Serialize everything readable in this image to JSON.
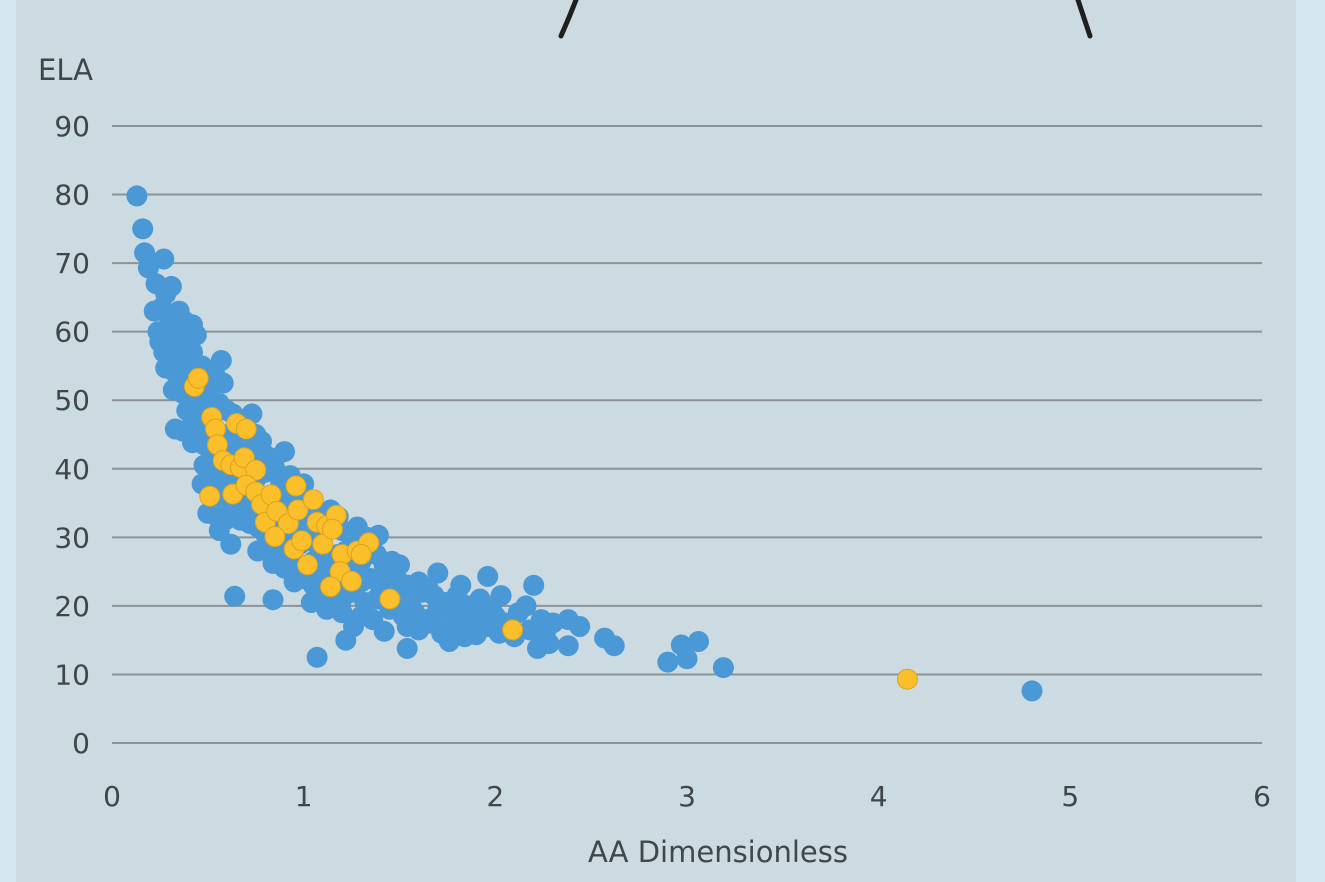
{
  "chart_data": {
    "type": "scatter",
    "title": "",
    "xlabel": "AA Dimensionless",
    "ylabel": "ELA",
    "xlim": [
      0,
      6
    ],
    "ylim": [
      0,
      90
    ],
    "x_ticks": [
      "0",
      "1",
      "2",
      "3",
      "4",
      "5",
      "6"
    ],
    "y_ticks": [
      "0",
      "10",
      "20",
      "30",
      "40",
      "50",
      "60",
      "70",
      "80",
      "90"
    ],
    "grid": true,
    "legend": "none",
    "colors": {
      "series1": "#4a98d6",
      "series2": "#fbbf2c"
    },
    "series": [
      {
        "color": "#4a98d6",
        "points": [
          [
            0.13,
            79.8
          ],
          [
            0.16,
            75
          ],
          [
            0.17,
            71.5
          ],
          [
            0.19,
            69.3
          ],
          [
            0.27,
            70.6
          ],
          [
            0.23,
            67
          ],
          [
            0.31,
            66.6
          ],
          [
            0.28,
            65.5
          ],
          [
            0.22,
            63
          ],
          [
            0.26,
            63.5
          ],
          [
            0.3,
            62
          ],
          [
            0.35,
            63
          ],
          [
            0.38,
            61.5
          ],
          [
            0.42,
            61
          ],
          [
            0.24,
            60
          ],
          [
            0.28,
            59.5
          ],
          [
            0.32,
            60.5
          ],
          [
            0.25,
            58.5
          ],
          [
            0.3,
            58
          ],
          [
            0.36,
            59
          ],
          [
            0.4,
            58
          ],
          [
            0.44,
            59.5
          ],
          [
            0.27,
            57
          ],
          [
            0.33,
            56.5
          ],
          [
            0.38,
            56
          ],
          [
            0.42,
            57
          ],
          [
            0.47,
            55
          ],
          [
            0.57,
            55.8
          ],
          [
            0.28,
            54.7
          ],
          [
            0.33,
            54
          ],
          [
            0.37,
            53.5
          ],
          [
            0.41,
            54
          ],
          [
            0.46,
            53.5
          ],
          [
            0.5,
            52.5
          ],
          [
            0.54,
            53.5
          ],
          [
            0.58,
            52.5
          ],
          [
            0.32,
            51.5
          ],
          [
            0.37,
            51
          ],
          [
            0.42,
            50
          ],
          [
            0.48,
            51.5
          ],
          [
            0.52,
            50
          ],
          [
            0.56,
            49.5
          ],
          [
            0.6,
            48.5
          ],
          [
            0.39,
            48.5
          ],
          [
            0.45,
            48
          ],
          [
            0.5,
            47
          ],
          [
            0.55,
            48.5
          ],
          [
            0.63,
            48
          ],
          [
            0.69,
            46.5
          ],
          [
            0.73,
            48
          ],
          [
            0.42,
            46.5
          ],
          [
            0.47,
            45.5
          ],
          [
            0.53,
            44.5
          ],
          [
            0.58,
            45
          ],
          [
            0.62,
            44
          ],
          [
            0.66,
            45
          ],
          [
            0.71,
            44.5
          ],
          [
            0.75,
            45
          ],
          [
            0.78,
            44
          ],
          [
            0.33,
            45.8
          ],
          [
            0.37,
            45.5
          ],
          [
            0.42,
            43.8
          ],
          [
            0.48,
            43.5
          ],
          [
            0.52,
            42.5
          ],
          [
            0.56,
            42
          ],
          [
            0.6,
            41.5
          ],
          [
            0.64,
            42.5
          ],
          [
            0.68,
            41.5
          ],
          [
            0.72,
            42
          ],
          [
            0.76,
            43
          ],
          [
            0.8,
            42
          ],
          [
            0.85,
            41.5
          ],
          [
            0.9,
            42.5
          ],
          [
            0.48,
            40.5
          ],
          [
            0.52,
            39.5
          ],
          [
            0.56,
            39
          ],
          [
            0.6,
            38.5
          ],
          [
            0.64,
            38
          ],
          [
            0.7,
            39
          ],
          [
            0.75,
            38.5
          ],
          [
            0.8,
            39.5
          ],
          [
            0.85,
            40
          ],
          [
            0.88,
            38
          ],
          [
            0.93,
            39
          ],
          [
            0.47,
            37.8
          ],
          [
            0.52,
            36.5
          ],
          [
            0.56,
            36
          ],
          [
            0.61,
            35.5
          ],
          [
            0.65,
            35
          ],
          [
            0.7,
            34.5
          ],
          [
            0.74,
            35.5
          ],
          [
            0.78,
            34
          ],
          [
            0.83,
            35
          ],
          [
            0.86,
            36.5
          ],
          [
            0.9,
            35.5
          ],
          [
            0.95,
            36
          ],
          [
            1.0,
            37.8
          ],
          [
            0.5,
            33.5
          ],
          [
            0.55,
            33
          ],
          [
            0.59,
            32.5
          ],
          [
            0.63,
            33.5
          ],
          [
            0.67,
            32.5
          ],
          [
            0.72,
            32
          ],
          [
            0.76,
            31.5
          ],
          [
            0.8,
            30.5
          ],
          [
            0.84,
            32.5
          ],
          [
            0.88,
            31
          ],
          [
            0.93,
            30.5
          ],
          [
            0.97,
            31.5
          ],
          [
            1.02,
            33
          ],
          [
            1.06,
            34
          ],
          [
            1.1,
            33
          ],
          [
            1.14,
            34
          ],
          [
            1.18,
            33
          ],
          [
            0.56,
            31
          ],
          [
            0.62,
            29
          ],
          [
            0.76,
            28
          ],
          [
            0.8,
            28.5
          ],
          [
            0.84,
            27
          ],
          [
            0.9,
            28
          ],
          [
            0.94,
            27.5
          ],
          [
            0.98,
            29
          ],
          [
            1.03,
            29.5
          ],
          [
            1.07,
            30.5
          ],
          [
            1.12,
            31
          ],
          [
            1.16,
            32
          ],
          [
            1.2,
            31
          ],
          [
            1.24,
            30.5
          ],
          [
            1.28,
            31.5
          ],
          [
            1.33,
            30
          ],
          [
            1.39,
            30.3
          ],
          [
            0.84,
            26.2
          ],
          [
            0.9,
            25.5
          ],
          [
            0.95,
            26
          ],
          [
            1.0,
            25
          ],
          [
            1.05,
            26.5
          ],
          [
            1.09,
            27
          ],
          [
            1.13,
            26.5
          ],
          [
            1.18,
            27.5
          ],
          [
            1.22,
            28
          ],
          [
            1.26,
            27
          ],
          [
            1.3,
            26.5
          ],
          [
            1.34,
            28
          ],
          [
            1.38,
            27.5
          ],
          [
            1.42,
            26
          ],
          [
            1.46,
            26.5
          ],
          [
            1.5,
            26
          ],
          [
            0.95,
            23.5
          ],
          [
            1.0,
            24
          ],
          [
            1.05,
            23
          ],
          [
            1.1,
            24.5
          ],
          [
            1.15,
            23.5
          ],
          [
            1.2,
            24
          ],
          [
            1.25,
            25
          ],
          [
            1.3,
            23.5
          ],
          [
            1.35,
            24
          ],
          [
            1.4,
            23
          ],
          [
            1.45,
            24.5
          ],
          [
            1.5,
            23.5
          ],
          [
            1.55,
            23
          ],
          [
            1.6,
            23.5
          ],
          [
            1.65,
            22.5
          ],
          [
            1.7,
            24.8
          ],
          [
            1.82,
            23
          ],
          [
            1.96,
            24.3
          ],
          [
            2.2,
            23
          ],
          [
            1.04,
            20.5
          ],
          [
            1.1,
            21.5
          ],
          [
            1.15,
            20
          ],
          [
            1.2,
            21
          ],
          [
            1.26,
            22
          ],
          [
            1.32,
            20.5
          ],
          [
            1.38,
            21
          ],
          [
            1.44,
            22
          ],
          [
            1.5,
            21.5
          ],
          [
            1.56,
            20
          ],
          [
            1.62,
            22
          ],
          [
            1.68,
            21.5
          ],
          [
            1.74,
            20.5
          ],
          [
            1.8,
            21.5
          ],
          [
            1.86,
            20
          ],
          [
            1.92,
            21
          ],
          [
            1.98,
            20
          ],
          [
            2.03,
            21.5
          ],
          [
            1.12,
            19.5
          ],
          [
            1.2,
            19
          ],
          [
            1.3,
            18.5
          ],
          [
            1.36,
            18
          ],
          [
            1.45,
            19.5
          ],
          [
            1.52,
            18.5
          ],
          [
            1.58,
            19
          ],
          [
            1.64,
            18
          ],
          [
            1.7,
            19.5
          ],
          [
            1.76,
            18.5
          ],
          [
            1.82,
            19
          ],
          [
            1.88,
            18
          ],
          [
            1.94,
            19
          ],
          [
            2.0,
            18.5
          ],
          [
            2.06,
            17.5
          ],
          [
            2.12,
            19
          ],
          [
            2.16,
            20
          ],
          [
            2.24,
            18
          ],
          [
            1.26,
            17
          ],
          [
            1.42,
            16.3
          ],
          [
            1.54,
            17
          ],
          [
            1.6,
            16.5
          ],
          [
            1.66,
            17.5
          ],
          [
            1.72,
            16
          ],
          [
            1.78,
            17
          ],
          [
            1.84,
            16.5
          ],
          [
            1.9,
            16
          ],
          [
            1.96,
            17
          ],
          [
            2.02,
            16
          ],
          [
            2.1,
            15.5
          ],
          [
            2.18,
            16.5
          ],
          [
            2.26,
            16
          ],
          [
            2.3,
            17.5
          ],
          [
            2.38,
            18
          ],
          [
            2.44,
            17
          ],
          [
            1.76,
            14.8
          ],
          [
            1.84,
            15.5
          ],
          [
            1.9,
            15.8
          ],
          [
            2.22,
            13.8
          ],
          [
            2.28,
            14.5
          ],
          [
            2.38,
            14.2
          ],
          [
            1.22,
            15
          ],
          [
            1.54,
            13.8
          ],
          [
            1.07,
            12.5
          ],
          [
            2.57,
            15.3
          ],
          [
            2.62,
            14.2
          ],
          [
            2.9,
            11.8
          ],
          [
            2.97,
            14.3
          ],
          [
            3.0,
            12.3
          ],
          [
            3.06,
            14.8
          ],
          [
            3.19,
            11
          ],
          [
            0.64,
            21.4
          ],
          [
            0.84,
            20.9
          ],
          [
            4.8,
            7.6
          ]
        ]
      },
      {
        "color": "#fbbf2c",
        "points": [
          [
            0.43,
            52
          ],
          [
            0.45,
            53.2
          ],
          [
            0.52,
            47.5
          ],
          [
            0.54,
            45.8
          ],
          [
            0.65,
            46.6
          ],
          [
            0.7,
            45.8
          ],
          [
            0.55,
            43.5
          ],
          [
            0.58,
            41.2
          ],
          [
            0.62,
            40.6
          ],
          [
            0.67,
            40.2
          ],
          [
            0.69,
            41.6
          ],
          [
            0.75,
            39.8
          ],
          [
            0.51,
            36
          ],
          [
            0.63,
            36.3
          ],
          [
            0.7,
            37.6
          ],
          [
            0.75,
            36.6
          ],
          [
            0.78,
            34.8
          ],
          [
            0.83,
            36.2
          ],
          [
            0.8,
            32.2
          ],
          [
            0.86,
            33.8
          ],
          [
            0.92,
            32
          ],
          [
            0.96,
            37.5
          ],
          [
            0.97,
            34
          ],
          [
            1.05,
            35.5
          ],
          [
            1.07,
            32.2
          ],
          [
            1.12,
            31.7
          ],
          [
            1.17,
            33.2
          ],
          [
            0.85,
            30.1
          ],
          [
            0.95,
            28.3
          ],
          [
            0.99,
            29.5
          ],
          [
            1.02,
            26
          ],
          [
            1.1,
            29
          ],
          [
            1.15,
            31.2
          ],
          [
            1.2,
            27.5
          ],
          [
            1.28,
            28
          ],
          [
            1.34,
            29.2
          ],
          [
            1.19,
            25
          ],
          [
            1.25,
            23.6
          ],
          [
            1.3,
            27.5
          ],
          [
            1.14,
            22.8
          ],
          [
            1.45,
            21
          ],
          [
            2.09,
            16.5
          ],
          [
            4.15,
            9.3
          ]
        ]
      }
    ]
  }
}
